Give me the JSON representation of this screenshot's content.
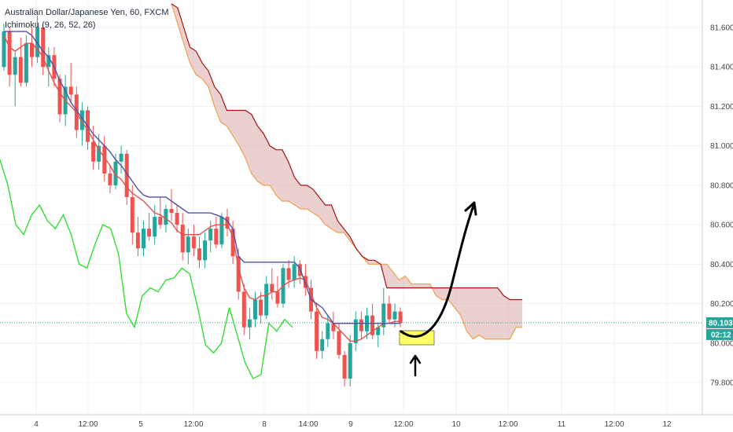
{
  "legend": {
    "title": "Australian Dollar/Japanese Yen, 60, FXCM",
    "indicator": "Ichimoku (9, 26, 52, 26)"
  },
  "price_badge": {
    "value": "80.103",
    "countdown": "02:12"
  },
  "colors": {
    "up": "#26a69a",
    "down": "#ef5350",
    "conversion": "#e0504f",
    "base": "#5050a8",
    "lagging": "#33dd33",
    "cloud_fill": "#d9a9a6",
    "lead_a": "#f0a050",
    "lead_b": "#a81010",
    "price_line": "#2aa89a",
    "highlight": "#ffff66",
    "badge": "#26a69a"
  },
  "chart_data": {
    "type": "candlestick",
    "title": "Australian Dollar/Japanese Yen, 60, FXCM",
    "ylim": [
      79.62,
      81.72
    ],
    "y_ticks": [
      "81.600",
      "81.400",
      "81.200",
      "81.000",
      "80.800",
      "80.600",
      "80.400",
      "80.200",
      "80.000",
      "79.800"
    ],
    "x_ticks": [
      "4",
      "12:00",
      "5",
      "12:00",
      "8",
      "14:00",
      "9",
      "12:00",
      "10",
      "12:00",
      "11",
      "12:00",
      "12"
    ],
    "current_price": 80.103,
    "candles_ohlc": [
      [
        81.4,
        81.62,
        81.38,
        81.58
      ],
      [
        81.58,
        81.6,
        81.3,
        81.36
      ],
      [
        81.36,
        81.48,
        81.2,
        81.45
      ],
      [
        81.45,
        81.55,
        81.3,
        81.32
      ],
      [
        81.32,
        81.56,
        81.3,
        81.52
      ],
      [
        81.52,
        81.6,
        81.4,
        81.45
      ],
      [
        81.45,
        81.66,
        81.42,
        81.6
      ],
      [
        81.6,
        81.62,
        81.36,
        81.4
      ],
      [
        81.4,
        81.5,
        81.3,
        81.46
      ],
      [
        81.46,
        81.5,
        81.3,
        81.34
      ],
      [
        81.34,
        81.36,
        81.12,
        81.16
      ],
      [
        81.16,
        81.36,
        81.1,
        81.3
      ],
      [
        81.3,
        81.42,
        81.22,
        81.26
      ],
      [
        81.26,
        81.3,
        81.04,
        81.08
      ],
      [
        81.08,
        81.22,
        81.0,
        81.18
      ],
      [
        81.18,
        81.2,
        80.98,
        81.02
      ],
      [
        81.02,
        81.1,
        80.88,
        80.92
      ],
      [
        80.92,
        81.06,
        80.88,
        81.0
      ],
      [
        81.0,
        81.05,
        80.82,
        80.86
      ],
      [
        80.86,
        80.9,
        80.76,
        80.8
      ],
      [
        80.8,
        80.96,
        80.78,
        80.92
      ],
      [
        80.92,
        81.0,
        80.86,
        80.96
      ],
      [
        80.96,
        80.98,
        80.7,
        80.74
      ],
      [
        80.74,
        80.8,
        80.5,
        80.56
      ],
      [
        80.56,
        80.64,
        80.44,
        80.48
      ],
      [
        80.48,
        80.62,
        80.44,
        80.58
      ],
      [
        80.58,
        80.66,
        80.52,
        80.54
      ],
      [
        80.54,
        80.7,
        80.5,
        80.64
      ],
      [
        80.64,
        80.74,
        80.58,
        80.6
      ],
      [
        80.6,
        80.7,
        80.56,
        80.68
      ],
      [
        80.68,
        80.78,
        80.62,
        80.66
      ],
      [
        80.66,
        80.7,
        80.56,
        80.6
      ],
      [
        80.6,
        80.66,
        80.42,
        80.46
      ],
      [
        80.46,
        80.58,
        80.4,
        80.54
      ],
      [
        80.54,
        80.6,
        80.44,
        80.48
      ],
      [
        80.48,
        80.54,
        80.38,
        80.42
      ],
      [
        80.42,
        80.56,
        80.38,
        80.52
      ],
      [
        80.52,
        80.62,
        80.46,
        80.58
      ],
      [
        80.58,
        80.64,
        80.48,
        80.5
      ],
      [
        80.5,
        80.66,
        80.48,
        80.64
      ],
      [
        80.64,
        80.68,
        80.54,
        80.58
      ],
      [
        80.58,
        80.62,
        80.4,
        80.44
      ],
      [
        80.44,
        80.48,
        80.22,
        80.26
      ],
      [
        80.26,
        80.3,
        80.04,
        80.08
      ],
      [
        80.08,
        80.18,
        80.02,
        80.12
      ],
      [
        80.12,
        80.26,
        80.08,
        80.22
      ],
      [
        80.22,
        80.26,
        80.1,
        80.14
      ],
      [
        80.14,
        80.34,
        80.12,
        80.3
      ],
      [
        80.3,
        80.38,
        80.22,
        80.26
      ],
      [
        80.26,
        80.34,
        80.18,
        80.2
      ],
      [
        80.2,
        80.4,
        80.18,
        80.38
      ],
      [
        80.38,
        80.42,
        80.28,
        80.32
      ],
      [
        80.32,
        80.44,
        80.28,
        80.4
      ],
      [
        80.4,
        80.42,
        80.3,
        80.34
      ],
      [
        80.34,
        80.4,
        80.24,
        80.28
      ],
      [
        80.28,
        80.32,
        80.12,
        80.16
      ],
      [
        80.16,
        80.2,
        79.92,
        79.96
      ],
      [
        79.96,
        80.06,
        79.92,
        80.02
      ],
      [
        80.02,
        80.14,
        79.98,
        80.1
      ],
      [
        80.1,
        80.16,
        80.02,
        80.06
      ],
      [
        80.06,
        80.1,
        79.92,
        79.94
      ],
      [
        79.94,
        79.96,
        79.78,
        79.82
      ],
      [
        79.82,
        80.04,
        79.78,
        80.0
      ],
      [
        80.0,
        80.16,
        79.96,
        80.12
      ],
      [
        80.12,
        80.16,
        80.02,
        80.06
      ],
      [
        80.06,
        80.18,
        80.02,
        80.14
      ],
      [
        80.14,
        80.2,
        80.02,
        80.04
      ],
      [
        80.04,
        80.1,
        79.98,
        80.08
      ],
      [
        80.08,
        80.28,
        80.04,
        80.2
      ],
      [
        80.2,
        80.24,
        80.1,
        80.12
      ],
      [
        80.12,
        80.2,
        80.08,
        80.16
      ],
      [
        80.16,
        80.18,
        80.08,
        80.1
      ]
    ],
    "conversion_line": [
      81.56,
      81.5,
      81.48,
      81.5,
      81.52,
      81.52,
      81.49,
      81.45,
      81.38,
      81.32,
      81.27,
      81.23,
      81.2,
      81.17,
      81.12,
      81.08,
      81.03,
      80.98,
      80.94,
      80.9,
      80.85,
      80.83,
      80.79,
      80.76,
      80.74,
      80.72,
      80.69,
      80.66,
      80.65,
      80.63,
      80.61,
      80.57,
      80.55,
      80.55,
      80.55,
      80.55,
      80.57,
      80.59,
      80.6,
      80.6,
      80.6,
      80.54,
      80.38,
      80.28,
      80.23,
      80.22,
      80.24,
      80.24,
      80.26,
      80.26,
      80.29,
      80.31,
      80.32,
      80.33,
      80.32,
      80.25,
      80.18,
      80.13,
      80.12,
      80.1,
      80.07,
      80.04,
      80.01,
      80.01,
      80.02,
      80.04,
      80.06,
      80.08,
      80.1,
      80.1,
      80.11,
      80.11
    ],
    "base_line": [
      81.58,
      81.58,
      81.58,
      81.58,
      81.58,
      81.56,
      81.52,
      81.48,
      81.45,
      81.4,
      81.33,
      81.28,
      81.22,
      81.18,
      81.14,
      81.1,
      81.06,
      81.03,
      81.0,
      80.97,
      80.93,
      80.9,
      80.86,
      80.82,
      80.78,
      80.75,
      80.74,
      80.74,
      80.74,
      80.74,
      80.72,
      80.7,
      80.68,
      80.66,
      80.66,
      80.66,
      80.66,
      80.66,
      80.65,
      80.64,
      80.62,
      80.58,
      80.44,
      80.41,
      80.41,
      80.41,
      80.41,
      80.41,
      80.41,
      80.41,
      80.41,
      80.41,
      80.41,
      80.38,
      80.3,
      80.22,
      80.2,
      80.18,
      80.14,
      80.1,
      80.1,
      80.1,
      80.1,
      80.1,
      80.1,
      80.1,
      80.1,
      80.1,
      80.1,
      80.1,
      80.1,
      80.1
    ],
    "lagging_span": [
      80.93,
      80.8,
      80.6,
      80.55,
      80.65,
      80.7,
      80.62,
      80.58,
      80.65,
      80.55,
      80.4,
      80.38,
      80.5,
      80.6,
      80.58,
      80.45,
      80.15,
      80.08,
      80.24,
      80.28,
      80.26,
      80.32,
      80.33,
      80.38,
      80.35,
      80.18,
      79.99,
      79.95,
      80.0,
      80.18,
      80.04,
      79.9,
      79.82,
      79.84,
      80.1,
      80.06,
      80.12,
      80.08
    ],
    "senkou_a": [
      81.72,
      81.62,
      81.52,
      81.42,
      81.36,
      81.34,
      81.3,
      81.2,
      81.12,
      81.1,
      81.05,
      81.0,
      80.94,
      80.86,
      80.82,
      80.8,
      80.8,
      80.75,
      80.72,
      80.72,
      80.7,
      80.68,
      80.68,
      80.66,
      80.64,
      80.6,
      80.58,
      80.56,
      80.56,
      80.52,
      80.48,
      80.44,
      80.4,
      80.4,
      80.4,
      80.4,
      80.36,
      80.32,
      80.34,
      80.3,
      80.3,
      80.3,
      80.3,
      80.24,
      80.22,
      80.22,
      80.18,
      80.14,
      80.06,
      80.02,
      80.04,
      80.02,
      80.02,
      80.02,
      80.02,
      80.02,
      80.08,
      80.08
    ],
    "senkou_b": [
      81.72,
      81.7,
      81.6,
      81.5,
      81.48,
      81.42,
      81.38,
      81.3,
      81.26,
      81.18,
      81.18,
      81.18,
      81.18,
      81.16,
      81.1,
      81.06,
      81.0,
      80.98,
      80.98,
      80.92,
      80.84,
      80.8,
      80.8,
      80.78,
      80.74,
      80.7,
      80.7,
      80.62,
      80.58,
      80.54,
      80.48,
      80.44,
      80.42,
      80.42,
      80.4,
      80.28,
      80.28,
      80.28,
      80.28,
      80.28,
      80.28,
      80.28,
      80.28,
      80.28,
      80.28,
      80.28,
      80.28,
      80.28,
      80.28,
      80.28,
      80.28,
      80.28,
      80.28,
      80.28,
      80.24,
      80.22,
      80.22,
      80.22
    ]
  }
}
